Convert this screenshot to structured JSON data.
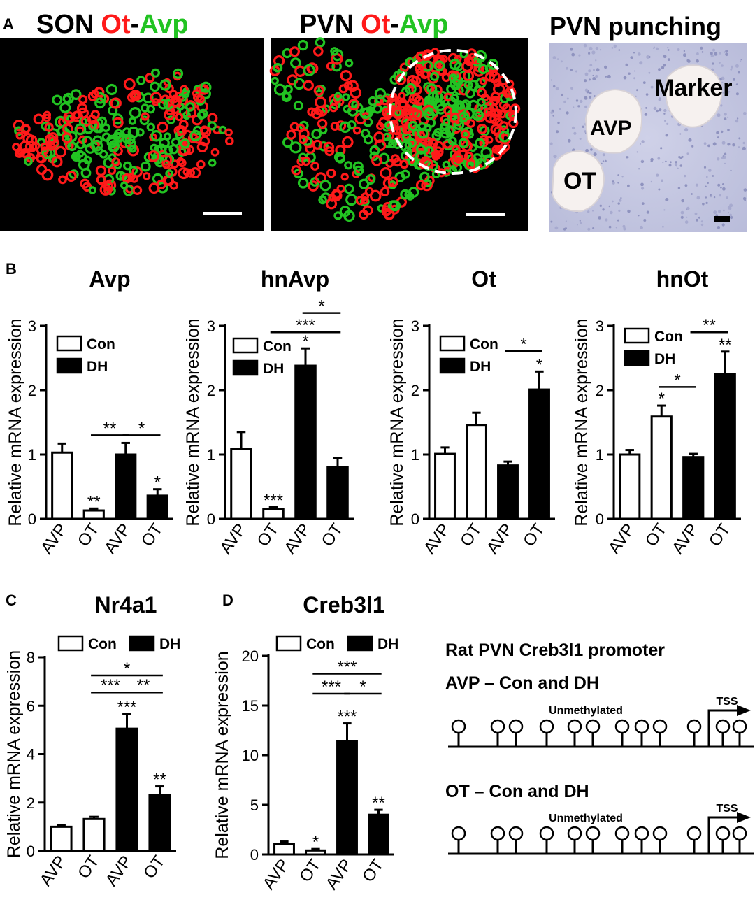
{
  "panel_labels": [
    "A",
    "B",
    "C",
    "D"
  ],
  "panel_a": {
    "son": {
      "region": "SON",
      "red": "Ot",
      "dash": "-",
      "green": "Avp"
    },
    "pvn": {
      "region": "PVN",
      "red": "Ot",
      "dash": "-",
      "green": "Avp"
    },
    "punch": {
      "title": "PVN punching",
      "marker": "Marker",
      "avp": "AVP",
      "ot": "OT"
    }
  },
  "colors": {
    "red": "#ff1a1a",
    "green": "#22c322",
    "tissue": "#c9cbe3",
    "black": "#000000"
  },
  "ylabel": "Relative mRNA expression",
  "legend": {
    "con": "Con",
    "dh": "DH"
  },
  "chart_data": [
    {
      "type": "bar",
      "title": "Avp",
      "ylabel": "Relative mRNA expression",
      "categories": [
        "AVP",
        "OT",
        "AVP",
        "OT"
      ],
      "fill": [
        "white",
        "white",
        "black",
        "black"
      ],
      "values": [
        1.03,
        0.13,
        1.0,
        0.36
      ],
      "errors": [
        0.14,
        0.03,
        0.18,
        0.1
      ],
      "ylim": [
        0,
        3
      ],
      "yticks": [
        "0",
        "1",
        "2",
        "3"
      ],
      "stars": [
        "",
        "**",
        "",
        "*"
      ],
      "brackets": [
        {
          "from": 1,
          "to": 2,
          "y": 1.3,
          "label": "**"
        },
        {
          "from": 2,
          "to": 3,
          "y": 1.3,
          "label": "*"
        }
      ],
      "legend": [
        "Con",
        "DH"
      ]
    },
    {
      "type": "bar",
      "title": "hnAvp",
      "ylabel": "Relative mRNA expression",
      "categories": [
        "AVP",
        "OT",
        "AVP",
        "OT"
      ],
      "fill": [
        "white",
        "white",
        "black",
        "black"
      ],
      "values": [
        1.09,
        0.15,
        2.38,
        0.8
      ],
      "errors": [
        0.26,
        0.03,
        0.27,
        0.15
      ],
      "ylim": [
        0,
        3
      ],
      "yticks": [
        "0",
        "1",
        "2",
        "3"
      ],
      "stars": [
        "",
        "***",
        "*",
        ""
      ],
      "brackets": [
        {
          "from": 1,
          "to": 3,
          "y": 2.9,
          "label": "***"
        },
        {
          "from": 2,
          "to": 3,
          "y": 3.2,
          "label": "*"
        }
      ],
      "legend": [
        "Con",
        "DH"
      ]
    },
    {
      "type": "bar",
      "title": "Ot",
      "ylabel": "Relative mRNA expression",
      "categories": [
        "AVP",
        "OT",
        "AVP",
        "OT"
      ],
      "fill": [
        "white",
        "white",
        "black",
        "black"
      ],
      "values": [
        1.01,
        1.46,
        0.83,
        2.01
      ],
      "errors": [
        0.1,
        0.19,
        0.06,
        0.28
      ],
      "ylim": [
        0,
        3
      ],
      "yticks": [
        "0",
        "1",
        "2",
        "3"
      ],
      "stars": [
        "",
        "",
        "",
        "*"
      ],
      "brackets": [
        {
          "from": 2,
          "to": 3,
          "y": 2.61,
          "label": "*"
        }
      ],
      "legend": [
        "Con",
        "DH"
      ]
    },
    {
      "type": "bar",
      "title": "hnOt",
      "ylabel": "Relative mRNA expression",
      "categories": [
        "AVP",
        "OT",
        "AVP",
        "OT"
      ],
      "fill": [
        "white",
        "white",
        "black",
        "black"
      ],
      "values": [
        1.0,
        1.59,
        0.96,
        2.25
      ],
      "errors": [
        0.07,
        0.17,
        0.05,
        0.35
      ],
      "ylim": [
        0,
        3
      ],
      "yticks": [
        "0",
        "1",
        "2",
        "3"
      ],
      "stars": [
        "",
        "*",
        "",
        "**"
      ],
      "brackets": [
        {
          "from": 1,
          "to": 2,
          "y": 2.05,
          "label": "*"
        },
        {
          "from": 2,
          "to": 3,
          "y": 2.9,
          "label": "**"
        }
      ],
      "legend": [
        "Con",
        "DH"
      ]
    },
    {
      "type": "bar",
      "title": "Nr4a1",
      "ylabel": "Relative mRNA expression",
      "categories": [
        "AVP",
        "OT",
        "AVP",
        "OT"
      ],
      "fill": [
        "white",
        "white",
        "black",
        "black"
      ],
      "values": [
        1.0,
        1.32,
        5.05,
        2.3
      ],
      "errors": [
        0.06,
        0.09,
        0.61,
        0.37
      ],
      "ylim": [
        0,
        8
      ],
      "yticks": [
        "0",
        "2",
        "4",
        "6",
        "8"
      ],
      "stars": [
        "",
        "",
        "***",
        "**"
      ],
      "brackets": [
        {
          "from": 1,
          "to": 2,
          "y": 6.55,
          "label": "***"
        },
        {
          "from": 2,
          "to": 3,
          "y": 6.55,
          "label": "**"
        },
        {
          "from": 1,
          "to": 3,
          "y": 7.25,
          "label": "*"
        }
      ],
      "legend": [
        "Con",
        "DH"
      ]
    },
    {
      "type": "bar",
      "title": "Creb3l1",
      "ylabel": "Relative mRNA expression",
      "categories": [
        "AVP",
        "OT",
        "AVP",
        "OT"
      ],
      "fill": [
        "white",
        "white",
        "black",
        "black"
      ],
      "values": [
        1.05,
        0.4,
        11.4,
        4.0
      ],
      "errors": [
        0.25,
        0.15,
        1.8,
        0.5
      ],
      "ylim": [
        0,
        20
      ],
      "yticks": [
        "0",
        "5",
        "10",
        "15",
        "20"
      ],
      "stars": [
        "",
        "*",
        "***",
        "**"
      ],
      "brackets": [
        {
          "from": 1,
          "to": 2,
          "y": 16.2,
          "label": "***"
        },
        {
          "from": 2,
          "to": 3,
          "y": 16.2,
          "label": "*"
        },
        {
          "from": 1,
          "to": 3,
          "y": 18.2,
          "label": "***"
        }
      ],
      "legend": [
        "Con",
        "DH"
      ]
    }
  ],
  "methylation": {
    "title": "Rat PVN Creb3l1 promoter",
    "rows": [
      {
        "label": "AVP – Con and DH",
        "status": "Unmethylated",
        "tss": "TSS"
      },
      {
        "label": "OT – Con and DH",
        "status": "Unmethylated",
        "tss": "TSS"
      }
    ]
  }
}
